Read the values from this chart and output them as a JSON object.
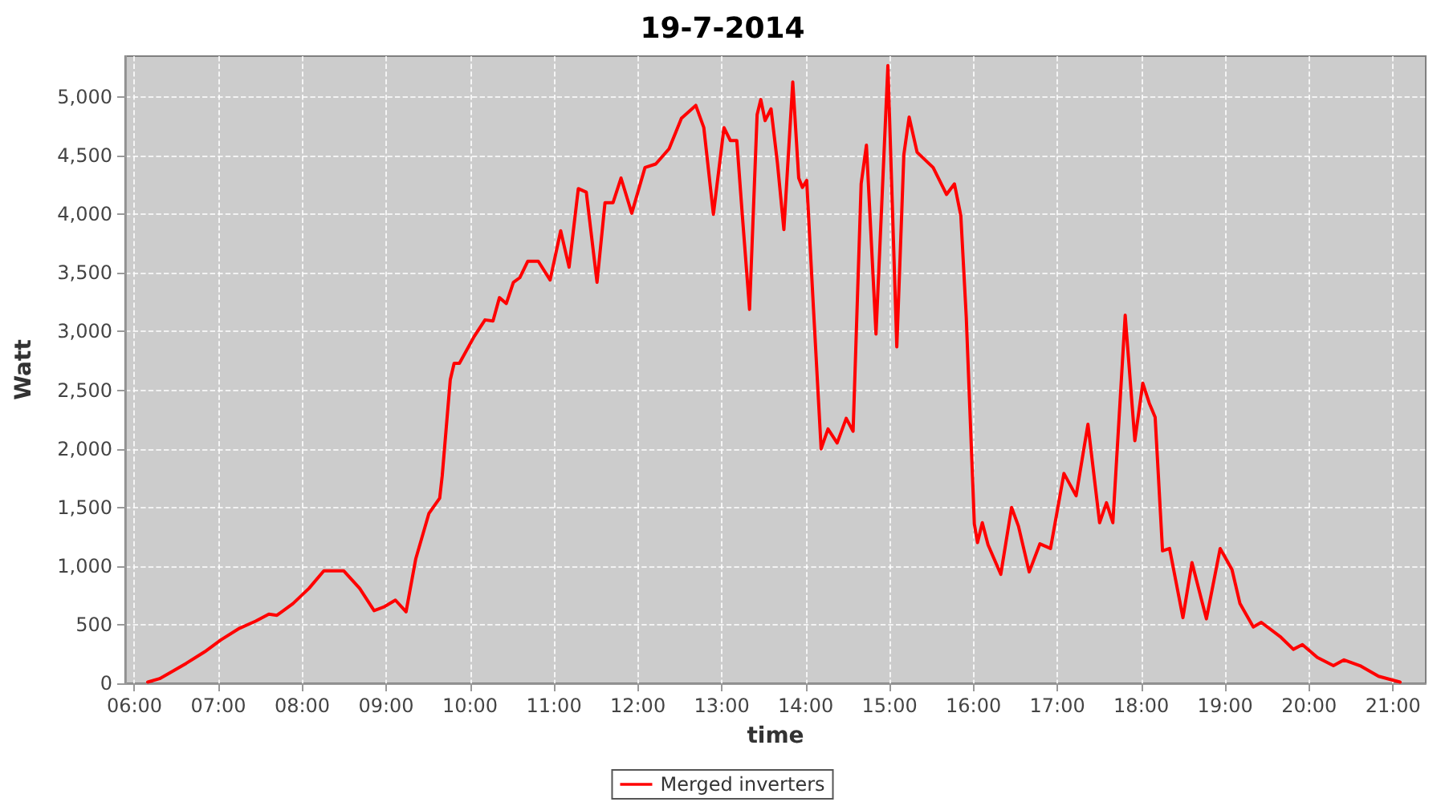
{
  "chart_data": {
    "type": "line",
    "title": "19-7-2014",
    "xlabel": "time",
    "ylabel": "Watt",
    "x": [
      6.158,
      6.3,
      6.425,
      6.616,
      6.839,
      7.03,
      7.253,
      7.444,
      7.602,
      7.698,
      7.889,
      8.08,
      8.257,
      8.493,
      8.684,
      8.856,
      8.97,
      9.11,
      9.237,
      9.352,
      9.51,
      9.638,
      9.668,
      9.764,
      9.81,
      9.873,
      10.05,
      10.178,
      10.273,
      10.35,
      10.432,
      10.516,
      10.592,
      10.687,
      10.813,
      10.954,
      11.08,
      11.18,
      11.29,
      11.385,
      11.513,
      11.608,
      11.704,
      11.799,
      11.927,
      12.085,
      12.213,
      12.372,
      12.519,
      12.69,
      12.786,
      12.9,
      13.026,
      13.102,
      13.179,
      13.243,
      13.331,
      13.421,
      13.465,
      13.516,
      13.587,
      13.663,
      13.74,
      13.846,
      13.917,
      13.961,
      14.012,
      14.088,
      14.184,
      14.266,
      14.375,
      14.483,
      14.565,
      14.661,
      14.724,
      14.838,
      14.98,
      15.086,
      15.17,
      15.233,
      15.328,
      15.519,
      15.678,
      15.773,
      15.849,
      15.914,
      16.01,
      16.048,
      16.105,
      16.174,
      16.325,
      16.454,
      16.536,
      16.664,
      16.792,
      16.918,
      17.078,
      17.223,
      17.364,
      17.503,
      17.585,
      17.661,
      17.808,
      17.923,
      18.018,
      18.095,
      18.165,
      18.253,
      18.337,
      18.496,
      18.604,
      18.776,
      18.94,
      19.081,
      19.176,
      19.335,
      19.43,
      19.653,
      19.812,
      19.92,
      20.098,
      20.29,
      20.416,
      20.607,
      20.828,
      21.084
    ],
    "series": [
      {
        "name": "Merged inverters",
        "color": "#ff0000",
        "values": [
          10,
          40,
          90,
          170,
          270,
          370,
          470,
          530,
          590,
          580,
          680,
          810,
          960,
          960,
          810,
          620,
          650,
          710,
          610,
          1060,
          1450,
          1580,
          1770,
          2590,
          2730,
          2730,
          2960,
          3100,
          3090,
          3290,
          3240,
          3420,
          3460,
          3600,
          3600,
          3440,
          3860,
          3550,
          4220,
          4190,
          3420,
          4100,
          4100,
          4310,
          4010,
          4400,
          4430,
          4560,
          4820,
          4930,
          4740,
          4000,
          4740,
          4630,
          4630,
          4010,
          3190,
          4850,
          4980,
          4800,
          4900,
          4440,
          3870,
          5130,
          4310,
          4230,
          4290,
          3260,
          2000,
          2170,
          2050,
          2260,
          2150,
          4260,
          4590,
          2980,
          5270,
          2870,
          4510,
          4830,
          4530,
          4400,
          4170,
          4260,
          3990,
          3120,
          1360,
          1200,
          1370,
          1180,
          930,
          1500,
          1340,
          950,
          1190,
          1150,
          1790,
          1600,
          2210,
          1370,
          1540,
          1370,
          3140,
          2070,
          2560,
          2390,
          2270,
          1130,
          1150,
          560,
          1030,
          550,
          1150,
          970,
          680,
          480,
          520,
          400,
          290,
          330,
          220,
          150,
          200,
          150,
          60,
          10
        ]
      }
    ],
    "xlim": [
      5.89,
      21.39
    ],
    "xticks": [
      {
        "value": 6,
        "label": "06:00"
      },
      {
        "value": 7,
        "label": "07:00"
      },
      {
        "value": 8,
        "label": "08:00"
      },
      {
        "value": 9,
        "label": "09:00"
      },
      {
        "value": 10,
        "label": "10:00"
      },
      {
        "value": 11,
        "label": "11:00"
      },
      {
        "value": 12,
        "label": "12:00"
      },
      {
        "value": 13,
        "label": "13:00"
      },
      {
        "value": 14,
        "label": "14:00"
      },
      {
        "value": 15,
        "label": "15:00"
      },
      {
        "value": 16,
        "label": "16:00"
      },
      {
        "value": 17,
        "label": "17:00"
      },
      {
        "value": 18,
        "label": "18:00"
      },
      {
        "value": 19,
        "label": "19:00"
      },
      {
        "value": 20,
        "label": "20:00"
      },
      {
        "value": 21,
        "label": "21:00"
      }
    ],
    "ylim": [
      0,
      5350
    ],
    "yticks": [
      0,
      500,
      {
        "value": 1000,
        "label": "1,000"
      },
      {
        "value": 1500,
        "label": "1,500"
      },
      {
        "value": 2000,
        "label": "2,000"
      },
      {
        "value": 2500,
        "label": "2,500"
      },
      {
        "value": 3000,
        "label": "3,000"
      },
      {
        "value": 3500,
        "label": "3,500"
      },
      {
        "value": 4000,
        "label": "4,000"
      },
      {
        "value": 4500,
        "label": "4,500"
      },
      {
        "value": 5000,
        "label": "5,000"
      }
    ],
    "grid": true,
    "legend": "bottom",
    "marker": "none",
    "line_style": "solid"
  }
}
